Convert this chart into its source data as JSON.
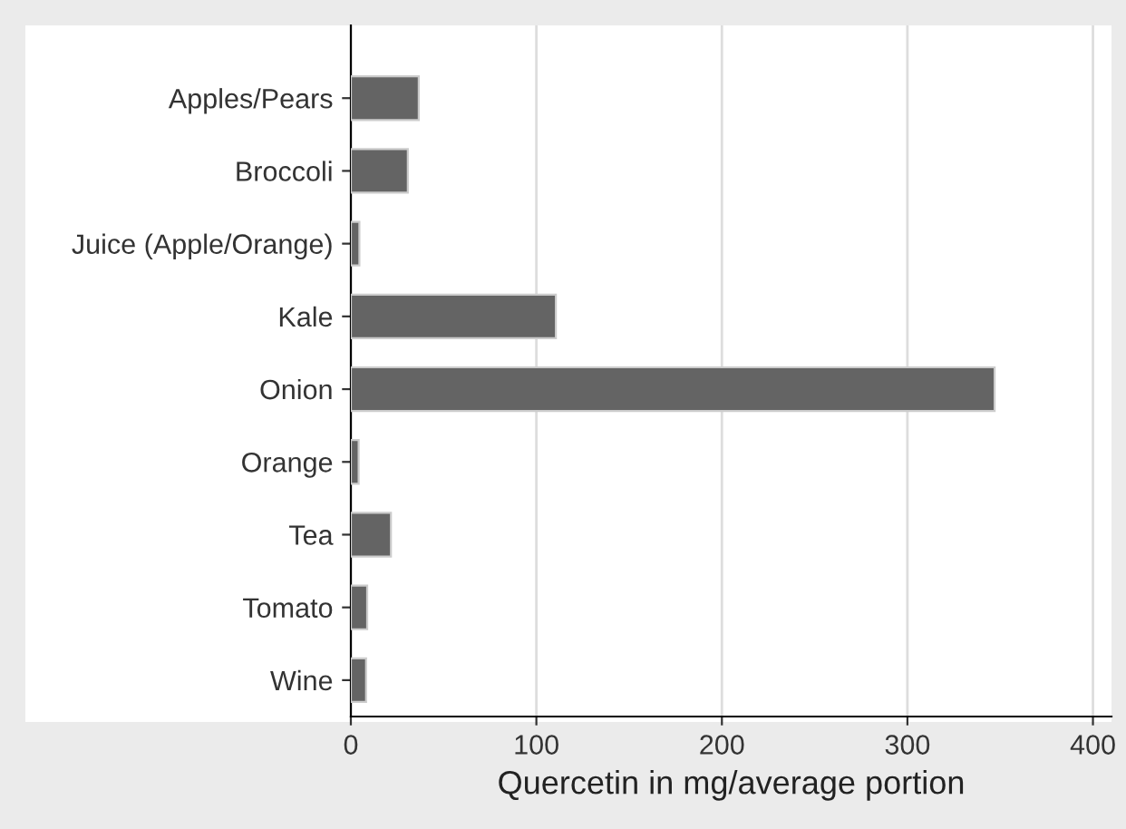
{
  "chart_data": {
    "type": "bar",
    "orientation": "horizontal",
    "xlabel": "Quercetin in mg/average portion",
    "categories": [
      "Apples/Pears",
      "Broccoli",
      "Juice (Apple/Orange)",
      "Kale",
      "Onion",
      "Orange",
      "Tea",
      "Tomato",
      "Wine"
    ],
    "values": [
      36.6,
      30.7,
      4.6,
      110.5,
      347,
      4.2,
      21.6,
      8.8,
      8.2
    ],
    "color": "#646464",
    "xlim": [
      0,
      410
    ],
    "xticks": [
      0,
      100,
      200,
      300,
      400
    ],
    "grid": "x"
  }
}
